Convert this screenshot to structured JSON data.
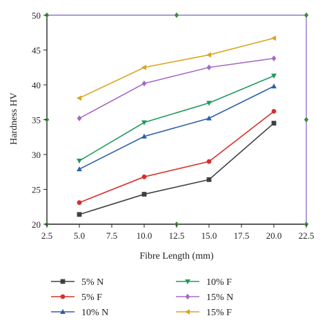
{
  "chart_data": {
    "type": "line",
    "title": "",
    "xlabel": "Fibre Length (mm)",
    "ylabel": "Hardness HV",
    "xlim": [
      2.5,
      22.5
    ],
    "ylim": [
      20,
      50
    ],
    "xticks": [
      "2.5",
      "5.0",
      "7.5",
      "10.0",
      "12.5",
      "15.0",
      "17.5",
      "20.0",
      "22.5"
    ],
    "yticks": [
      "20",
      "25",
      "30",
      "35",
      "40",
      "45",
      "50"
    ],
    "grid": false,
    "legend_position": "bottom",
    "x": [
      5.0,
      10.0,
      15.0,
      20.0
    ],
    "series": [
      {
        "name": "5% N",
        "values": [
          21.4,
          24.3,
          26.4,
          34.5
        ],
        "color": "#404040",
        "marker": "square"
      },
      {
        "name": "5% F",
        "values": [
          23.1,
          26.8,
          29.0,
          36.2
        ],
        "color": "#d62f2a",
        "marker": "circle"
      },
      {
        "name": "10% N",
        "values": [
          27.9,
          32.6,
          35.2,
          39.8
        ],
        "color": "#2f5fa8",
        "marker": "triangle-up"
      },
      {
        "name": "10% F",
        "values": [
          29.1,
          34.6,
          37.4,
          41.3
        ],
        "color": "#1f9a5a",
        "marker": "triangle-down"
      },
      {
        "name": "15% N",
        "values": [
          35.2,
          40.2,
          42.5,
          43.8
        ],
        "color": "#a56bc2",
        "marker": "diamond"
      },
      {
        "name": "15% F",
        "values": [
          38.1,
          42.5,
          44.3,
          46.7
        ],
        "color": "#d9a520",
        "marker": "triangle-left"
      }
    ]
  },
  "frame": {
    "border_color": "#7a5cc9",
    "corner_marker_color": "#3f8b3a"
  }
}
